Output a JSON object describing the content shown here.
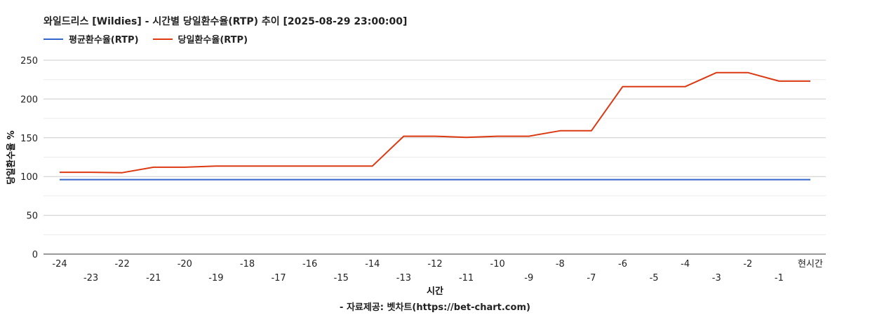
{
  "title": "와일드리스 [Wildies] - 시간별 당일환수율(RTP) 추이 [2025-08-29 23:00:00]",
  "source": "- 자료제공: 벳차트(https://bet-chart.com)",
  "colors": {
    "avg": "#3366cc",
    "daily": "#dc3912",
    "grid": "#cccccc",
    "minor_grid": "#ebebeb",
    "axis": "#333333"
  },
  "chart_data": {
    "type": "line",
    "xlabel": "시간",
    "ylabel": "당일환수율 %",
    "ylim": [
      0,
      250
    ],
    "yticks": [
      "0",
      "50",
      "100",
      "150",
      "200",
      "250"
    ],
    "categories": [
      "-24",
      "-23",
      "-22",
      "-21",
      "-20",
      "-19",
      "-18",
      "-17",
      "-16",
      "-15",
      "-14",
      "-13",
      "-12",
      "-11",
      "-10",
      "-9",
      "-8",
      "-7",
      "-6",
      "-5",
      "-4",
      "-3",
      "-2",
      "-1",
      "현시간"
    ],
    "grid": true,
    "legend_position": "top-left",
    "series": [
      {
        "name": "평균환수율(RTP)",
        "values": [
          96,
          96,
          96,
          96,
          96,
          96,
          96,
          96,
          96,
          96,
          96,
          96,
          96,
          96,
          96,
          96,
          96,
          96,
          96,
          96,
          96,
          96,
          96,
          96,
          96
        ]
      },
      {
        "name": "당일환수율(RTP)",
        "values": [
          105.5,
          105.5,
          105,
          112,
          112,
          113.5,
          113.5,
          113.5,
          113.5,
          113.5,
          113.5,
          152,
          152,
          150.5,
          152,
          152,
          159,
          159,
          216,
          216,
          216,
          234,
          234,
          223,
          223
        ]
      }
    ]
  }
}
